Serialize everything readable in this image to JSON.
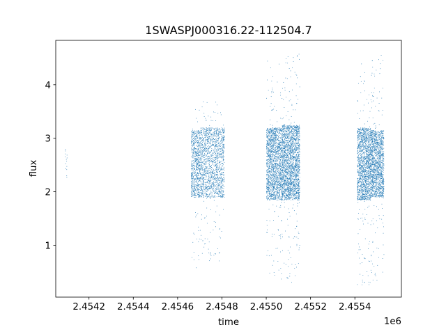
{
  "chart_data": {
    "type": "scatter",
    "title": "1SWASPJ000316.22-112504.7",
    "xlabel": "time",
    "ylabel": "flux",
    "x_offset_label": "1e6",
    "x_tick_values": [
      2.4542,
      2.4544,
      2.4546,
      2.4548,
      2.455,
      2.4552,
      2.4554
    ],
    "x_tick_labels": [
      "2.4542",
      "2.4544",
      "2.4546",
      "2.4548",
      "2.4550",
      "2.4552",
      "2.4554"
    ],
    "y_tick_values": [
      1,
      2,
      3,
      4
    ],
    "y_tick_labels": [
      "1",
      "2",
      "3",
      "4"
    ],
    "xlim": [
      2.45405,
      2.45561
    ],
    "ylim": [
      0.03,
      4.83
    ],
    "grid": false,
    "marker_color": "#1f77b4",
    "series": [
      {
        "clusters": [
          {
            "x_range": [
              2.45409,
              2.4541
            ],
            "y_range": [
              2.2,
              2.85
            ],
            "core": [
              2.2,
              2.85
            ],
            "count": 14
          },
          {
            "x_range": [
              2.45466,
              2.4547
            ],
            "y_range": [
              0.5,
              3.65
            ],
            "core": [
              1.9,
              3.15
            ],
            "count": 700
          },
          {
            "x_range": [
              2.4547,
              2.45481
            ],
            "y_range": [
              0.7,
              3.72
            ],
            "core": [
              1.9,
              3.2
            ],
            "count": 1600
          },
          {
            "x_range": [
              2.455,
              2.45507
            ],
            "y_range": [
              0.35,
              4.45
            ],
            "core": [
              1.85,
              3.2
            ],
            "count": 1700
          },
          {
            "x_range": [
              2.45507,
              2.45515
            ],
            "y_range": [
              0.3,
              4.6
            ],
            "core": [
              1.85,
              3.25
            ],
            "count": 2200
          },
          {
            "x_range": [
              2.45541,
              2.45547
            ],
            "y_range": [
              0.25,
              4.42
            ],
            "core": [
              1.85,
              3.2
            ],
            "count": 1600
          },
          {
            "x_range": [
              2.45547,
              2.45553
            ],
            "y_range": [
              0.3,
              4.6
            ],
            "core": [
              1.9,
              3.15
            ],
            "count": 1500
          }
        ]
      }
    ]
  }
}
